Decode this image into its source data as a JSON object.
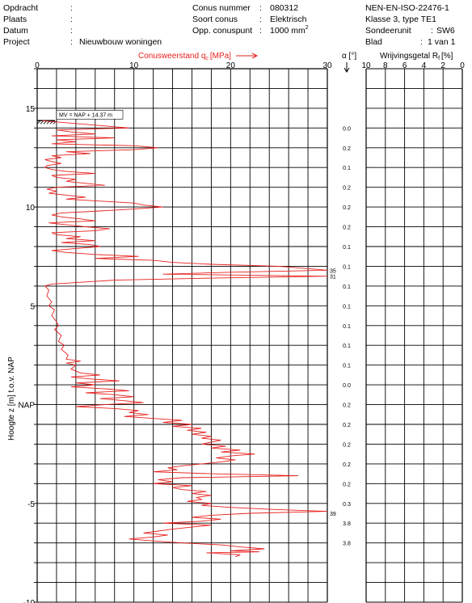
{
  "header": {
    "left": [
      {
        "label": "Opdracht",
        "value": ""
      },
      {
        "label": "Plaats",
        "value": ""
      },
      {
        "label": "Datum",
        "value": ""
      },
      {
        "label": "Project",
        "value": "Nieuwbouw woningen"
      }
    ],
    "middle": [
      {
        "label": "Conus nummer",
        "value": "080312"
      },
      {
        "label": "Soort conus",
        "value": "Elektrisch"
      },
      {
        "label": "Opp. conuspunt",
        "value": "1000 mm",
        "sup": "2"
      }
    ],
    "right": [
      {
        "text": "NEN-EN-ISO-22476-1"
      },
      {
        "text": "Klasse 3, type TE1"
      },
      {
        "label": "Sondeerunit",
        "value": "SW6"
      },
      {
        "label": "Blad",
        "value": "1 van 1"
      }
    ]
  },
  "colors": {
    "trace": "#e8201e",
    "grid": "#000000",
    "title_red": "#e8201e"
  },
  "chart_data": {
    "type": "line",
    "title": "Conusweerstand q",
    "title_sub": "c",
    "title_unit": "[MPa]",
    "xlabel": "Conusweerstand qc [MPa]",
    "ylabel": "Hoogte z [m] t.o.v. NAP",
    "xlim": [
      0,
      30
    ],
    "x_ticks": [
      "0",
      "10",
      "20",
      "30"
    ],
    "ylim": [
      -10,
      17
    ],
    "y_ticks": [
      {
        "value": 15,
        "label": "15"
      },
      {
        "value": 10,
        "label": "10"
      },
      {
        "value": 5,
        "label": "5"
      },
      {
        "value": 0,
        "label": "NAP"
      },
      {
        "value": -5,
        "label": "-5"
      },
      {
        "value": -10,
        "label": "-10"
      }
    ],
    "grid": true,
    "ground_level_label": "MV = NAP + 14.37 m",
    "ground_level": 14.37,
    "alpha_header": "α [°]",
    "alpha_values": [
      {
        "z": 14.0,
        "value": "0.0"
      },
      {
        "z": 13.0,
        "value": "0.2"
      },
      {
        "z": 12.0,
        "value": "0.1"
      },
      {
        "z": 11.0,
        "value": "0.2"
      },
      {
        "z": 10.0,
        "value": "0.2"
      },
      {
        "z": 9.0,
        "value": "0.2"
      },
      {
        "z": 8.0,
        "value": "0.1"
      },
      {
        "z": 7.0,
        "value": "0.1"
      },
      {
        "z": 6.0,
        "value": "0.1"
      },
      {
        "z": 5.0,
        "value": "0.1"
      },
      {
        "z": 4.0,
        "value": "0.1"
      },
      {
        "z": 3.0,
        "value": "0.1"
      },
      {
        "z": 2.0,
        "value": "0.1"
      },
      {
        "z": 1.0,
        "value": "0.0"
      },
      {
        "z": 0.0,
        "value": "0.2"
      },
      {
        "z": -1.0,
        "value": "0.2"
      },
      {
        "z": -2.0,
        "value": "0.2"
      },
      {
        "z": -3.0,
        "value": "0.2"
      },
      {
        "z": -4.0,
        "value": "0.2"
      },
      {
        "z": -5.0,
        "value": "0.3"
      },
      {
        "z": -6.0,
        "value": "3.8"
      },
      {
        "z": -7.0,
        "value": "3.8"
      }
    ],
    "off_scale_labels": [
      {
        "z": 6.8,
        "value": "35"
      },
      {
        "z": 6.5,
        "value": "31"
      },
      {
        "z": -5.5,
        "value": "39"
      }
    ],
    "friction": {
      "title": "Wrijvingsgetal R",
      "title_sub": "f",
      "title_unit": "[%]",
      "xlim": [
        10,
        0
      ],
      "x_ticks": [
        "10",
        "8",
        "6",
        "4",
        "2",
        "0"
      ]
    },
    "series": [
      {
        "points": [
          [
            0.5,
            14.37
          ],
          [
            9.5,
            14.0
          ],
          [
            2.0,
            13.9
          ],
          [
            3.5,
            13.8
          ],
          [
            6.0,
            13.7
          ],
          [
            1.5,
            13.6
          ],
          [
            8.0,
            13.5
          ],
          [
            2.0,
            13.4
          ],
          [
            4.0,
            13.3
          ],
          [
            1.5,
            13.2
          ],
          [
            10.0,
            13.1
          ],
          [
            12.5,
            13.0
          ],
          [
            10.0,
            12.9
          ],
          [
            3.0,
            12.8
          ],
          [
            5.5,
            12.7
          ],
          [
            1.5,
            12.6
          ],
          [
            2.5,
            12.5
          ],
          [
            0.8,
            12.4
          ],
          [
            1.5,
            12.3
          ],
          [
            2.5,
            12.2
          ],
          [
            1.0,
            12.1
          ],
          [
            0.8,
            12.0
          ],
          [
            1.5,
            11.9
          ],
          [
            3.0,
            11.8
          ],
          [
            6.0,
            11.7
          ],
          [
            1.5,
            11.6
          ],
          [
            2.0,
            11.5
          ],
          [
            4.0,
            11.4
          ],
          [
            3.0,
            11.3
          ],
          [
            5.0,
            11.2
          ],
          [
            7.0,
            11.1
          ],
          [
            2.0,
            11.0
          ],
          [
            1.0,
            10.9
          ],
          [
            2.0,
            10.8
          ],
          [
            1.2,
            10.7
          ],
          [
            3.0,
            10.6
          ],
          [
            5.0,
            10.5
          ],
          [
            3.0,
            10.4
          ],
          [
            6.5,
            10.3
          ],
          [
            10.0,
            10.2
          ],
          [
            11.0,
            10.1
          ],
          [
            13.0,
            10.0
          ],
          [
            10.0,
            9.9
          ],
          [
            6.5,
            9.8
          ],
          [
            2.5,
            9.7
          ],
          [
            1.5,
            9.6
          ],
          [
            2.5,
            9.5
          ],
          [
            4.5,
            9.4
          ],
          [
            6.0,
            9.3
          ],
          [
            1.2,
            9.2
          ],
          [
            3.0,
            9.1
          ],
          [
            5.0,
            9.0
          ],
          [
            7.5,
            8.9
          ],
          [
            6.0,
            8.8
          ],
          [
            1.5,
            8.7
          ],
          [
            2.0,
            8.6
          ],
          [
            4.5,
            8.5
          ],
          [
            3.0,
            8.4
          ],
          [
            6.0,
            8.3
          ],
          [
            2.5,
            8.2
          ],
          [
            5.5,
            8.1
          ],
          [
            6.5,
            8.0
          ],
          [
            4.0,
            7.9
          ],
          [
            1.5,
            7.8
          ],
          [
            3.0,
            7.7
          ],
          [
            6.0,
            7.6
          ],
          [
            10.5,
            7.5
          ],
          [
            6.0,
            7.4
          ],
          [
            12.0,
            7.3
          ],
          [
            14.0,
            7.2
          ],
          [
            18.0,
            7.1
          ],
          [
            25.0,
            7.0
          ],
          [
            30.0,
            6.8
          ],
          [
            20.0,
            6.7
          ],
          [
            13.0,
            6.6
          ],
          [
            30.0,
            6.5
          ],
          [
            18.0,
            6.4
          ],
          [
            8.0,
            6.3
          ],
          [
            1.5,
            6.1
          ],
          [
            0.8,
            6.0
          ],
          [
            1.2,
            5.8
          ],
          [
            1.0,
            5.5
          ],
          [
            1.5,
            5.2
          ],
          [
            1.2,
            5.0
          ],
          [
            1.8,
            4.8
          ],
          [
            1.5,
            4.5
          ],
          [
            2.0,
            4.2
          ],
          [
            2.2,
            4.0
          ],
          [
            1.8,
            3.8
          ],
          [
            2.5,
            3.5
          ],
          [
            2.2,
            3.2
          ],
          [
            2.8,
            3.0
          ],
          [
            2.5,
            2.8
          ],
          [
            3.2,
            2.5
          ],
          [
            3.0,
            2.3
          ],
          [
            4.5,
            2.2
          ],
          [
            3.0,
            2.1
          ],
          [
            4.0,
            2.0
          ],
          [
            3.5,
            1.8
          ],
          [
            4.5,
            1.6
          ],
          [
            6.5,
            1.5
          ],
          [
            3.5,
            1.4
          ],
          [
            5.5,
            1.3
          ],
          [
            8.5,
            1.2
          ],
          [
            4.0,
            1.1
          ],
          [
            6.0,
            1.0
          ],
          [
            3.5,
            0.9
          ],
          [
            7.0,
            0.8
          ],
          [
            9.5,
            0.7
          ],
          [
            5.0,
            0.6
          ],
          [
            8.0,
            0.5
          ],
          [
            10.0,
            0.4
          ],
          [
            6.5,
            0.3
          ],
          [
            9.0,
            0.2
          ],
          [
            11.0,
            0.1
          ],
          [
            7.0,
            0.0
          ],
          [
            4.0,
            -0.1
          ],
          [
            8.0,
            -0.2
          ],
          [
            10.5,
            -0.3
          ],
          [
            9.5,
            -0.4
          ],
          [
            11.5,
            -0.5
          ],
          [
            9.0,
            -0.6
          ],
          [
            12.0,
            -0.7
          ],
          [
            15.0,
            -0.8
          ],
          [
            13.0,
            -0.9
          ],
          [
            16.0,
            -1.0
          ],
          [
            14.0,
            -1.1
          ],
          [
            17.0,
            -1.2
          ],
          [
            15.5,
            -1.3
          ],
          [
            17.5,
            -1.4
          ],
          [
            16.0,
            -1.5
          ],
          [
            18.0,
            -1.6
          ],
          [
            17.0,
            -1.7
          ],
          [
            19.0,
            -1.8
          ],
          [
            18.0,
            -1.9
          ],
          [
            17.0,
            -2.0
          ],
          [
            19.5,
            -2.1
          ],
          [
            18.0,
            -2.2
          ],
          [
            21.0,
            -2.3
          ],
          [
            19.0,
            -2.4
          ],
          [
            22.5,
            -2.5
          ],
          [
            20.0,
            -2.6
          ],
          [
            18.5,
            -2.7
          ],
          [
            20.5,
            -2.8
          ],
          [
            19.0,
            -2.9
          ],
          [
            17.0,
            -3.0
          ],
          [
            15.0,
            -3.1
          ],
          [
            13.5,
            -3.2
          ],
          [
            14.5,
            -3.3
          ],
          [
            12.0,
            -3.4
          ],
          [
            18.0,
            -3.5
          ],
          [
            27.0,
            -3.6
          ],
          [
            15.0,
            -3.7
          ],
          [
            12.5,
            -3.8
          ],
          [
            14.0,
            -3.9
          ],
          [
            12.0,
            -4.0
          ],
          [
            16.0,
            -4.1
          ],
          [
            14.0,
            -4.2
          ],
          [
            15.0,
            -4.3
          ],
          [
            17.5,
            -4.4
          ],
          [
            16.0,
            -4.5
          ],
          [
            18.0,
            -4.6
          ],
          [
            16.5,
            -4.7
          ],
          [
            17.0,
            -4.8
          ],
          [
            15.5,
            -4.9
          ],
          [
            18.0,
            -5.0
          ],
          [
            17.0,
            -5.1
          ],
          [
            20.0,
            -5.2
          ],
          [
            24.0,
            -5.3
          ],
          [
            30.0,
            -5.4
          ],
          [
            22.0,
            -5.5
          ],
          [
            18.0,
            -5.6
          ],
          [
            16.0,
            -5.7
          ],
          [
            19.0,
            -5.8
          ],
          [
            17.0,
            -5.9
          ],
          [
            13.0,
            -6.0
          ],
          [
            18.0,
            -6.1
          ],
          [
            16.0,
            -6.2
          ],
          [
            14.0,
            -6.3
          ],
          [
            12.5,
            -6.4
          ],
          [
            11.0,
            -6.5
          ],
          [
            13.5,
            -6.6
          ],
          [
            12.0,
            -6.7
          ],
          [
            9.5,
            -6.8
          ],
          [
            12.0,
            -6.9
          ],
          [
            15.0,
            -7.0
          ],
          [
            19.0,
            -7.1
          ],
          [
            21.0,
            -7.2
          ],
          [
            23.5,
            -7.3
          ],
          [
            20.0,
            -7.4
          ],
          [
            23.0,
            -7.45
          ],
          [
            17.5,
            -7.5
          ],
          [
            21.0,
            -7.6
          ],
          [
            20.5,
            -7.7
          ]
        ]
      }
    ]
  }
}
